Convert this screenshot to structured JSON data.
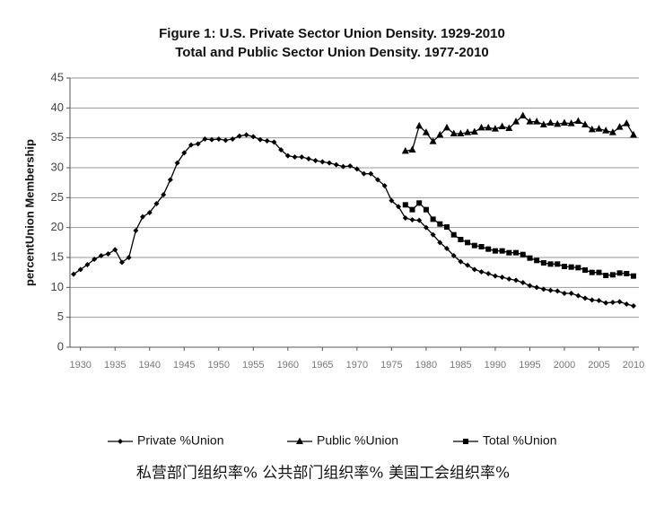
{
  "chart_data": {
    "type": "line",
    "title": "Figure 1: U.S. Private Sector Union Density. 1929-2010",
    "subtitle": "Total and Public Sector Union Density. 1977-2010",
    "y_label": "percentUnion Membership",
    "caption": "私营部门组织率% 公共部门组织率% 美国工会组织率%",
    "xlim": [
      1929,
      2010
    ],
    "xticks": [
      1930,
      1935,
      1940,
      1945,
      1950,
      1955,
      1960,
      1965,
      1970,
      1975,
      1980,
      1985,
      1990,
      1995,
      2000,
      2005,
      2010
    ],
    "ylim": [
      0,
      45
    ],
    "yticks": [
      0,
      5,
      10,
      15,
      20,
      25,
      30,
      35,
      40,
      45
    ],
    "grid": true,
    "legend": "bottom",
    "series": [
      {
        "name": "Private %Union",
        "color": "#000000",
        "marker": "diamond",
        "x": [
          1929,
          1930,
          1931,
          1932,
          1933,
          1934,
          1935,
          1936,
          1937,
          1938,
          1939,
          1940,
          1941,
          1942,
          1943,
          1944,
          1945,
          1946,
          1947,
          1948,
          1949,
          1950,
          1951,
          1952,
          1953,
          1954,
          1955,
          1956,
          1957,
          1958,
          1959,
          1960,
          1961,
          1962,
          1963,
          1964,
          1965,
          1966,
          1967,
          1968,
          1969,
          1970,
          1971,
          1972,
          1973,
          1974,
          1975,
          1976,
          1977,
          1978,
          1979,
          1980,
          1981,
          1982,
          1983,
          1984,
          1985,
          1986,
          1987,
          1988,
          1989,
          1990,
          1991,
          1992,
          1993,
          1994,
          1995,
          1996,
          1997,
          1998,
          1999,
          2000,
          2001,
          2002,
          2003,
          2004,
          2005,
          2006,
          2007,
          2008,
          2009,
          2010
        ],
        "values": [
          12.2,
          13.0,
          13.8,
          14.7,
          15.3,
          15.6,
          16.3,
          14.2,
          15.0,
          19.5,
          21.8,
          22.5,
          24.0,
          25.5,
          28.0,
          30.8,
          32.5,
          33.8,
          34.0,
          34.8,
          34.7,
          34.8,
          34.6,
          34.8,
          35.3,
          35.5,
          35.2,
          34.7,
          34.5,
          34.3,
          33.0,
          32.0,
          31.8,
          31.8,
          31.5,
          31.2,
          31.0,
          30.8,
          30.5,
          30.2,
          30.3,
          29.8,
          29.0,
          29.0,
          28.0,
          27.0,
          24.5,
          23.5,
          21.6,
          21.3,
          21.2,
          20.0,
          18.8,
          17.5,
          16.5,
          15.3,
          14.3,
          13.7,
          13.0,
          12.6,
          12.3,
          11.9,
          11.7,
          11.4,
          11.2,
          10.8,
          10.3,
          10.0,
          9.7,
          9.5,
          9.4,
          9.0,
          9.0,
          8.6,
          8.2,
          7.9,
          7.8,
          7.4,
          7.5,
          7.6,
          7.2,
          6.9
        ]
      },
      {
        "name": "Public %Union",
        "color": "#000000",
        "marker": "triangle",
        "x": [
          1977,
          1978,
          1979,
          1980,
          1981,
          1982,
          1983,
          1984,
          1985,
          1986,
          1987,
          1988,
          1989,
          1990,
          1991,
          1992,
          1993,
          1994,
          1995,
          1996,
          1997,
          1998,
          1999,
          2000,
          2001,
          2002,
          2003,
          2004,
          2005,
          2006,
          2007,
          2008,
          2009,
          2010
        ],
        "values": [
          32.8,
          33.0,
          37.0,
          35.9,
          34.4,
          35.5,
          36.7,
          35.7,
          35.7,
          35.9,
          36.0,
          36.7,
          36.7,
          36.5,
          36.9,
          36.6,
          37.7,
          38.7,
          37.7,
          37.7,
          37.2,
          37.5,
          37.3,
          37.5,
          37.4,
          37.8,
          37.2,
          36.4,
          36.5,
          36.2,
          35.9,
          36.8,
          37.4,
          35.5
        ]
      },
      {
        "name": "Total %Union",
        "color": "#000000",
        "marker": "square",
        "x": [
          1977,
          1978,
          1979,
          1980,
          1981,
          1982,
          1983,
          1984,
          1985,
          1986,
          1987,
          1988,
          1989,
          1990,
          1991,
          1992,
          1993,
          1994,
          1995,
          1996,
          1997,
          1998,
          1999,
          2000,
          2001,
          2002,
          2003,
          2004,
          2005,
          2006,
          2007,
          2008,
          2009,
          2010
        ],
        "values": [
          23.8,
          23.0,
          24.1,
          23.0,
          21.4,
          20.6,
          20.1,
          18.8,
          18.0,
          17.5,
          17.0,
          16.8,
          16.4,
          16.1,
          16.1,
          15.8,
          15.8,
          15.5,
          14.9,
          14.5,
          14.1,
          13.9,
          13.9,
          13.5,
          13.4,
          13.3,
          12.9,
          12.5,
          12.5,
          12.0,
          12.1,
          12.4,
          12.3,
          11.9
        ]
      }
    ]
  }
}
